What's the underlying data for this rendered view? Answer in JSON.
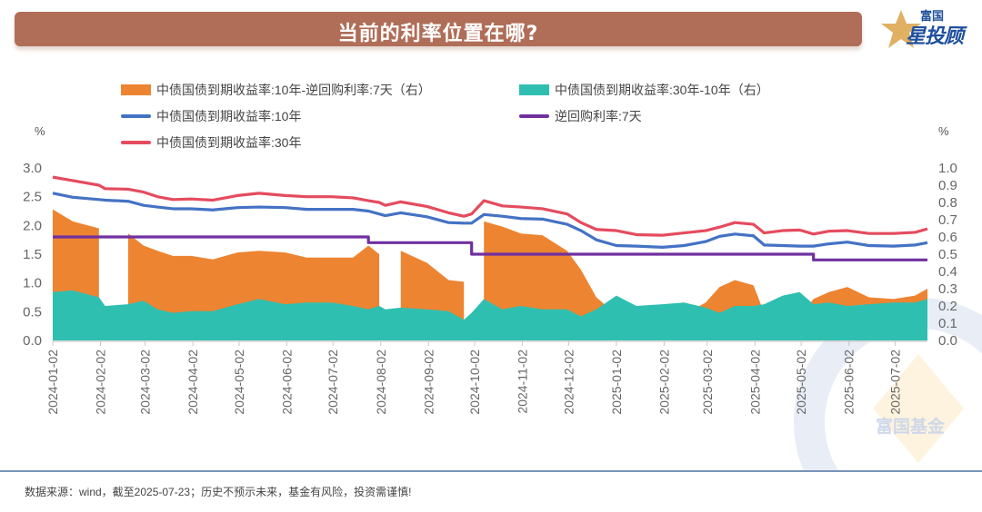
{
  "header": {
    "title": "当前的利率位置在哪?",
    "logo_top": "富国",
    "logo_main": "星投顾"
  },
  "watermark": "富国基金",
  "footer": "数据来源：wind，截至2025-07-23；历史不预示未来，基金有风险，投资需谨慎!",
  "colors": {
    "title_bg": "#b06d57",
    "spread_10y_7d": "#ed8431",
    "spread_30y_10y": "#2fbfb0",
    "yield_10y": "#4472c4",
    "yield_30y": "#e54b5e",
    "reverse_repo_7d": "#7030a0"
  },
  "chart_data": {
    "type": "line+area",
    "title": "当前的利率位置在哪?",
    "left_axis": {
      "label": "%",
      "range": [
        0,
        3.0
      ],
      "ticks": [
        "0.0",
        "0.5",
        "1.0",
        "1.5",
        "2.0",
        "2.5",
        "3.0"
      ]
    },
    "right_axis": {
      "label": "%",
      "range": [
        0,
        1.0
      ],
      "ticks": [
        "0.0",
        "0.1",
        "0.2",
        "0.3",
        "0.4",
        "0.5",
        "0.6",
        "0.7",
        "0.8",
        "0.9",
        "1.0"
      ]
    },
    "x_ticks": [
      "2024-01-02",
      "2024-02-02",
      "2024-03-02",
      "2024-04-02",
      "2024-05-02",
      "2024-06-02",
      "2024-07-02",
      "2024-08-02",
      "2024-09-02",
      "2024-10-02",
      "2024-11-02",
      "2024-12-02",
      "2025-01-02",
      "2025-02-02",
      "2025-03-02",
      "2025-04-02",
      "2025-05-02",
      "2025-06-02",
      "2025-07-02"
    ],
    "x_range": [
      "2024-01-02",
      "2025-07-23"
    ],
    "legend": [
      {
        "name": "中债国债到期收益率:10年-逆回购利率:7天（右）",
        "kind": "area",
        "color_key": "spread_10y_7d"
      },
      {
        "name": "中债国债到期收益率:30年-10年（右）",
        "kind": "area",
        "color_key": "spread_30y_10y"
      },
      {
        "name": "中债国债到期收益率:10年",
        "kind": "line",
        "color_key": "yield_10y"
      },
      {
        "name": "逆回购利率:7天",
        "kind": "line",
        "color_key": "reverse_repo_7d"
      },
      {
        "name": "中债国债到期收益率:30年",
        "kind": "line",
        "color_key": "yield_30y"
      }
    ],
    "x": [
      "2024-01-02",
      "2024-01-15",
      "2024-02-01",
      "2024-02-05",
      "2024-02-20",
      "2024-03-01",
      "2024-03-10",
      "2024-03-20",
      "2024-04-01",
      "2024-04-15",
      "2024-05-01",
      "2024-05-15",
      "2024-06-01",
      "2024-06-15",
      "2024-07-01",
      "2024-07-15",
      "2024-07-25",
      "2024-08-01",
      "2024-08-05",
      "2024-08-15",
      "2024-09-01",
      "2024-09-15",
      "2024-09-25",
      "2024-09-30",
      "2024-10-08",
      "2024-10-20",
      "2024-11-01",
      "2024-11-15",
      "2024-12-01",
      "2024-12-10",
      "2024-12-20",
      "2025-01-02",
      "2025-01-15",
      "2025-02-01",
      "2025-02-15",
      "2025-03-01",
      "2025-03-10",
      "2025-03-20",
      "2025-04-01",
      "2025-04-08",
      "2025-04-20",
      "2025-05-01",
      "2025-05-10",
      "2025-05-20",
      "2025-06-01",
      "2025-06-15",
      "2025-07-01",
      "2025-07-15",
      "2025-07-23"
    ],
    "series": [
      {
        "name": "中债国债到期收益率:10年",
        "axis": "left",
        "values": [
          2.56,
          2.49,
          2.45,
          2.44,
          2.42,
          2.35,
          2.32,
          2.29,
          2.29,
          2.27,
          2.31,
          2.32,
          2.31,
          2.28,
          2.28,
          2.28,
          2.25,
          2.2,
          2.17,
          2.22,
          2.15,
          2.05,
          2.04,
          2.04,
          2.19,
          2.16,
          2.12,
          2.11,
          2.02,
          1.91,
          1.75,
          1.65,
          1.64,
          1.62,
          1.65,
          1.72,
          1.81,
          1.85,
          1.82,
          1.66,
          1.65,
          1.64,
          1.64,
          1.68,
          1.71,
          1.65,
          1.64,
          1.66,
          1.7
        ]
      },
      {
        "name": "中债国债到期收益率:30年",
        "axis": "left",
        "values": [
          2.84,
          2.78,
          2.7,
          2.64,
          2.63,
          2.58,
          2.5,
          2.45,
          2.46,
          2.44,
          2.52,
          2.56,
          2.52,
          2.5,
          2.5,
          2.48,
          2.43,
          2.4,
          2.35,
          2.41,
          2.33,
          2.22,
          2.16,
          2.2,
          2.43,
          2.34,
          2.32,
          2.29,
          2.2,
          2.05,
          1.93,
          1.91,
          1.84,
          1.83,
          1.87,
          1.91,
          1.97,
          2.05,
          2.02,
          1.87,
          1.91,
          1.92,
          1.85,
          1.9,
          1.91,
          1.86,
          1.86,
          1.88,
          1.94
        ]
      },
      {
        "name": "逆回购利率:7天",
        "axis": "left",
        "values": [
          1.8,
          1.8,
          1.8,
          1.8,
          1.8,
          1.8,
          1.8,
          1.8,
          1.8,
          1.8,
          1.8,
          1.8,
          1.8,
          1.8,
          1.8,
          1.8,
          1.7,
          1.7,
          1.7,
          1.7,
          1.7,
          1.7,
          1.7,
          1.5,
          1.5,
          1.5,
          1.5,
          1.5,
          1.5,
          1.5,
          1.5,
          1.5,
          1.5,
          1.5,
          1.5,
          1.5,
          1.5,
          1.5,
          1.5,
          1.5,
          1.5,
          1.5,
          1.4,
          1.4,
          1.4,
          1.4,
          1.4,
          1.4,
          1.4
        ]
      },
      {
        "name": "中债国债到期收益率:10年-逆回购利率:7天（右）",
        "axis": "right",
        "values": [
          0.76,
          0.69,
          0.65,
          null,
          0.62,
          0.55,
          0.52,
          0.49,
          0.49,
          0.47,
          0.51,
          0.52,
          0.51,
          0.48,
          0.48,
          0.48,
          0.55,
          0.5,
          null,
          0.52,
          0.45,
          0.35,
          0.34,
          null,
          0.69,
          0.66,
          0.62,
          0.61,
          0.52,
          0.41,
          0.25,
          0.15,
          0.14,
          0.12,
          0.15,
          0.22,
          0.31,
          0.35,
          0.32,
          0.16,
          0.15,
          0.14,
          0.24,
          0.28,
          0.31,
          0.25,
          0.24,
          0.26,
          0.3
        ]
      },
      {
        "name": "中债国债到期收益率:30年-10年（右）",
        "axis": "right",
        "values": [
          0.28,
          0.29,
          0.25,
          0.2,
          0.21,
          0.23,
          0.18,
          0.16,
          0.17,
          0.17,
          0.21,
          0.24,
          0.21,
          0.22,
          0.22,
          0.2,
          0.18,
          0.2,
          0.18,
          0.19,
          0.18,
          0.17,
          0.12,
          0.16,
          0.24,
          0.18,
          0.2,
          0.18,
          0.18,
          0.14,
          0.18,
          0.26,
          0.2,
          0.21,
          0.22,
          0.19,
          0.16,
          0.2,
          0.2,
          0.21,
          0.26,
          0.28,
          0.21,
          0.22,
          0.2,
          0.21,
          0.22,
          0.22,
          0.24
        ]
      }
    ]
  }
}
